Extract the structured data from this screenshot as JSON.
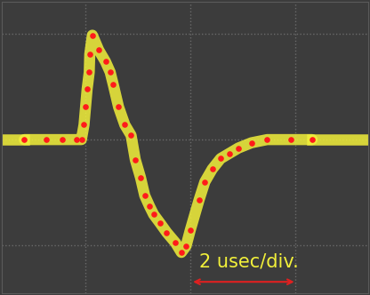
{
  "chart_data": {
    "type": "scatter",
    "x": [
      -3.17,
      -2.75,
      -2.45,
      -2.17,
      -2.08,
      -2.03,
      -2.0,
      -1.97,
      -1.93,
      -1.92,
      -1.87,
      -1.75,
      -1.62,
      -1.53,
      -1.47,
      -1.37,
      -1.25,
      -1.13,
      -1.05,
      -0.95,
      -0.87,
      -0.78,
      -0.7,
      -0.58,
      -0.45,
      -0.28,
      -0.17,
      -0.08,
      0.0,
      0.17,
      0.28,
      0.42,
      0.58,
      0.75,
      0.92,
      1.17,
      1.47,
      1.92,
      2.33
    ],
    "values": [
      0,
      0,
      0,
      0,
      0,
      0.14,
      0.31,
      0.48,
      0.64,
      0.81,
      0.99,
      0.85,
      0.74,
      0.64,
      0.52,
      0.31,
      0.14,
      0.04,
      -0.19,
      -0.36,
      -0.53,
      -0.63,
      -0.71,
      -0.79,
      -0.88,
      -0.98,
      -1.07,
      -1.01,
      -0.86,
      -0.57,
      -0.4,
      -0.28,
      -0.18,
      -0.13,
      -0.08,
      -0.03,
      0,
      0,
      0
    ],
    "color": "#ff1a1a",
    "marker": "o",
    "xlim": [
      -3.6,
      3.4
    ],
    "xticks": [
      -2,
      0,
      2
    ],
    "ylim": [
      -1.46,
      1.31
    ],
    "yticks": [
      -1,
      0,
      1
    ],
    "grid": true,
    "tick_labels": false,
    "annotations": [
      "2 usec/div."
    ]
  }
}
